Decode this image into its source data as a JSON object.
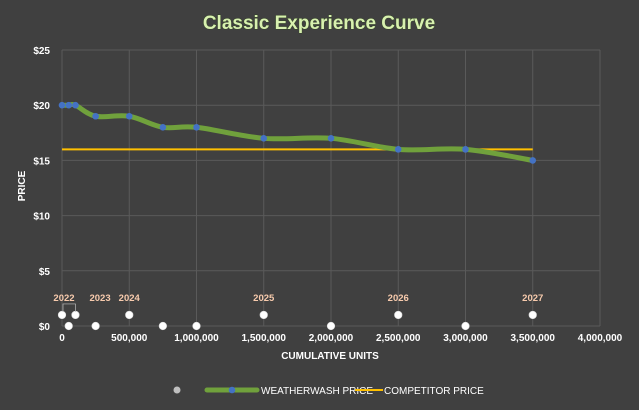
{
  "chart_data": {
    "type": "line",
    "title": "Classic Experience Curve",
    "xlabel": "CUMULATIVE UNITS",
    "ylabel": "PRICE",
    "xlim": [
      0,
      4000000
    ],
    "ylim": [
      0,
      25
    ],
    "x_ticks": [
      0,
      500000,
      1000000,
      1500000,
      2000000,
      2500000,
      3000000,
      3500000,
      4000000
    ],
    "x_tick_labels": [
      "0",
      "500,000",
      "1,000,000",
      "1,500,000",
      "2,000,000",
      "2,500,000",
      "3,000,000",
      "3,500,000",
      "4,000,000"
    ],
    "y_ticks": [
      0,
      5,
      10,
      15,
      20,
      25
    ],
    "y_tick_labels": [
      "$0",
      "$5",
      "$10",
      "$15",
      "$20",
      "$25"
    ],
    "grid": true,
    "legend_position": "bottom",
    "series": [
      {
        "name": "WEATHERWASH PRICE",
        "color": "#70a13c",
        "marker_color": "#4472c4",
        "smooth": true,
        "x": [
          0,
          50000,
          100000,
          250000,
          500000,
          750000,
          1000000,
          1500000,
          2000000,
          2500000,
          3000000,
          3500000
        ],
        "y": [
          20,
          20,
          20,
          19,
          19,
          18,
          18,
          17,
          17,
          16,
          16,
          15
        ]
      },
      {
        "name": "COMPETITOR PRICE",
        "color": "#ffc000",
        "x": [
          0,
          3500000
        ],
        "y": [
          16,
          16
        ]
      },
      {
        "name": "",
        "color": "#bfbfbf",
        "marker_only": true,
        "x": [
          0,
          50000,
          100000,
          250000,
          500000,
          750000,
          1000000,
          1500000,
          2000000,
          2500000,
          3000000,
          3500000
        ],
        "y": [
          1,
          0,
          1,
          0,
          1,
          0,
          0,
          1,
          0,
          1,
          0,
          1
        ]
      }
    ],
    "annotations": [
      {
        "text": "2022",
        "x": 0,
        "y": 1
      },
      {
        "text": "2023",
        "x": 250000,
        "y": 1
      },
      {
        "text": "2024",
        "x": 500000,
        "y": 1
      },
      {
        "text": "2025",
        "x": 1500000,
        "y": 1
      },
      {
        "text": "2026",
        "x": 2500000,
        "y": 1
      },
      {
        "text": "2027",
        "x": 3500000,
        "y": 1
      }
    ],
    "colors": {
      "background": "#404040",
      "grid": "#5a5a5a",
      "axis_text": "#ffffff",
      "title": "#d8f0b0",
      "annotation": "#f8cbad"
    }
  }
}
